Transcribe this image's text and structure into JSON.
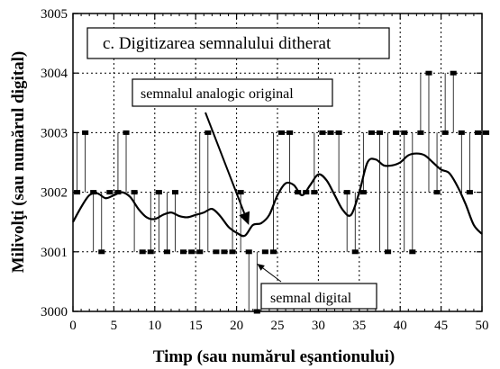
{
  "chart_data": {
    "type": "line",
    "title": "c. Digitizarea semnalului ditherat",
    "xlabel": "Timp (sau numărul eşantionului)",
    "ylabel": "Milivolţi (sau numărul digital)",
    "xlim": [
      0,
      50
    ],
    "ylim": [
      3000,
      3005
    ],
    "x_ticks": [
      0,
      5,
      10,
      15,
      20,
      25,
      30,
      35,
      40,
      45,
      50
    ],
    "y_ticks": [
      3000,
      3001,
      3002,
      3003,
      3004,
      3005
    ],
    "grid": true,
    "annotations": [
      {
        "text": "semnalul analogic original",
        "target": [
          21.5,
          3001.45
        ]
      },
      {
        "text": "semnal digital",
        "target": [
          22.5,
          3000.8
        ]
      }
    ],
    "series": [
      {
        "style": "smooth-line",
        "x": [
          0,
          1,
          2,
          3,
          4,
          5,
          6,
          7,
          8,
          9,
          10,
          11,
          12,
          13,
          14,
          15,
          16,
          17,
          18,
          19,
          20,
          21,
          22,
          23,
          24,
          25,
          26,
          27,
          28,
          29,
          30,
          31,
          32,
          33,
          34,
          35,
          36,
          37,
          38,
          39,
          40,
          41,
          42,
          43,
          44,
          45,
          46,
          47,
          48,
          49,
          50
        ],
        "y": [
          3001.5,
          3001.75,
          3001.95,
          3001.98,
          3001.9,
          3001.95,
          3002.0,
          3001.92,
          3001.72,
          3001.58,
          3001.55,
          3001.62,
          3001.66,
          3001.6,
          3001.58,
          3001.62,
          3001.66,
          3001.72,
          3001.6,
          3001.42,
          3001.32,
          3001.27,
          3001.45,
          3001.48,
          3001.62,
          3001.95,
          3002.15,
          3002.12,
          3001.95,
          3002.12,
          3002.3,
          3002.2,
          3001.95,
          3001.7,
          3001.62,
          3002.0,
          3002.5,
          3002.55,
          3002.45,
          3002.45,
          3002.5,
          3002.62,
          3002.65,
          3002.62,
          3002.5,
          3002.38,
          3002.32,
          3002.1,
          3001.8,
          3001.45,
          3001.3
        ]
      },
      {
        "style": "digital-steps",
        "x": [
          0,
          1,
          2,
          3,
          4,
          5,
          6,
          7,
          8,
          9,
          10,
          11,
          12,
          13,
          14,
          15,
          16,
          17,
          18,
          19,
          20,
          21,
          22,
          23,
          24,
          25,
          26,
          27,
          28,
          29,
          30,
          31,
          32,
          33,
          34,
          35,
          36,
          37,
          38,
          39,
          40,
          41,
          42,
          43,
          44,
          45,
          46,
          47,
          48,
          49,
          50
        ],
        "y": [
          3002,
          3003,
          3002,
          3001,
          3002,
          3002,
          3003,
          3002,
          3001,
          3001,
          3002,
          3001,
          3002,
          3001,
          3001,
          3001,
          3003,
          3001,
          3001,
          3001,
          3002,
          3001,
          3000,
          3001,
          3001,
          3003,
          3003,
          3002,
          3002,
          3002,
          3003,
          3003,
          3003,
          3002,
          3001,
          3002,
          3003,
          3003,
          3001,
          3003,
          3003,
          3001,
          3003,
          3004,
          3002,
          3003,
          3004,
          3003,
          3002,
          3003,
          3003
        ]
      }
    ]
  }
}
